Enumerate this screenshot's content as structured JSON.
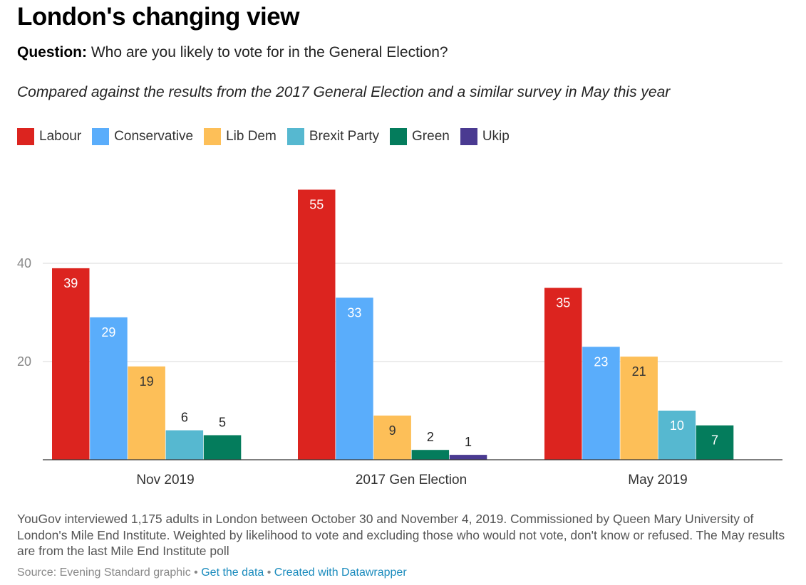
{
  "title": "London's changing view",
  "question_label": "Question:",
  "question_text": "Who are you likely to vote for in the General Election?",
  "subtitle": "Compared against the results from the 2017 General Election and a similar survey in May this year",
  "chart_data": {
    "type": "bar",
    "categories": [
      "Nov 2019",
      "2017 Gen Election",
      "May 2019"
    ],
    "series": [
      {
        "name": "Labour",
        "color": "#dc241f",
        "values": [
          39,
          55,
          35
        ]
      },
      {
        "name": "Conservative",
        "color": "#5aadfb",
        "values": [
          29,
          33,
          23
        ]
      },
      {
        "name": "Lib Dem",
        "color": "#fdbf58",
        "values": [
          19,
          9,
          21
        ]
      },
      {
        "name": "Brexit Party",
        "color": "#56b8d0",
        "values": [
          6,
          null,
          10
        ]
      },
      {
        "name": "Green",
        "color": "#047c5c",
        "values": [
          5,
          2,
          7
        ]
      },
      {
        "name": "Ukip",
        "color": "#4a3a91",
        "values": [
          null,
          1,
          null
        ]
      }
    ],
    "yticks": [
      20,
      40
    ],
    "ylim": [
      0,
      60
    ],
    "gridlines": true,
    "xlabel": "",
    "ylabel": ""
  },
  "notes": "YouGov interviewed 1,175 adults in London between October 30 and November 4, 2019. Commissioned by Queen Mary University of London's Mile End Institute. Weighted by likelihood to vote and excluding those who would not vote, don't know or refused. The May results are from the last Mile End Institute poll",
  "source": {
    "prefix": "Source: Evening Standard graphic",
    "sep": " • ",
    "link1": "Get the data",
    "link2": "Created with Datawrapper"
  }
}
